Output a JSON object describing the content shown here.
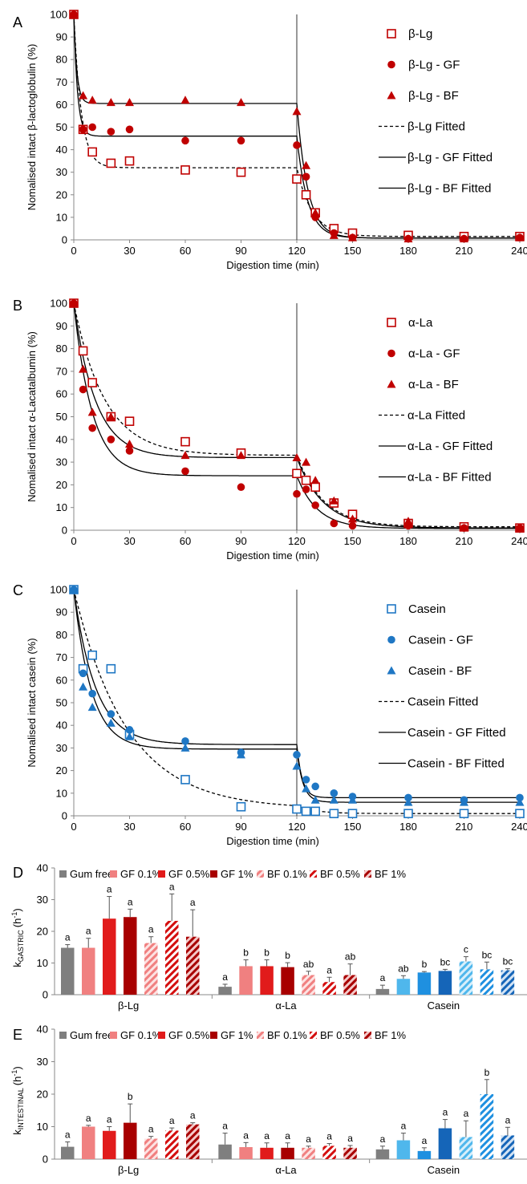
{
  "colors": {
    "red": "#c00000",
    "blue": "#1f77c4",
    "gray": "#7f7f7f",
    "axis": "#888888",
    "gf01": "#f08080",
    "gf05": "#e11b1b",
    "gf1": "#a80000",
    "bf01": "#f08080",
    "bf05": "#e11b1b",
    "bf1": "#a80000",
    "b_gf01": "#4fb7ec",
    "b_gf05": "#1f90e0",
    "b_gf1": "#1565b8",
    "b_bf01": "#4fb7ec",
    "b_bf05": "#1f90e0",
    "b_bf1": "#1565b8"
  },
  "chart_data": [
    {
      "panel": "A",
      "type": "scatter",
      "xlabel": "Digestion time (min)",
      "ylabel": "Nomalised intact β-lactoglobulin (%)",
      "xlim": [
        0,
        240
      ],
      "ylim": [
        0,
        100
      ],
      "xticks": [
        0,
        30,
        60,
        90,
        120,
        150,
        180,
        210,
        240
      ],
      "yticks": [
        0,
        10,
        20,
        30,
        40,
        50,
        60,
        70,
        80,
        90,
        100
      ],
      "vline_x": 120,
      "legend_position": "right",
      "series": [
        {
          "name": "β-Lg",
          "marker": "square-open",
          "x": [
            0,
            5,
            10,
            20,
            30,
            60,
            90,
            120,
            125,
            130,
            140,
            150,
            180,
            210,
            240
          ],
          "y": [
            100,
            49,
            39,
            34,
            35,
            31,
            30,
            27,
            20,
            12,
            5,
            3,
            2,
            1.5,
            1.5
          ]
        },
        {
          "name": "β-Lg - GF",
          "marker": "circle",
          "x": [
            0,
            5,
            10,
            20,
            30,
            60,
            90,
            120,
            125,
            130,
            140,
            150,
            180,
            210,
            240
          ],
          "y": [
            100,
            49,
            50,
            48,
            49,
            44,
            44,
            42,
            28,
            10,
            3,
            1,
            0.5,
            0.5,
            1
          ]
        },
        {
          "name": "β-Lg - BF",
          "marker": "triangle",
          "x": [
            0,
            5,
            10,
            20,
            30,
            60,
            90,
            120,
            125,
            130,
            140,
            150,
            180,
            210,
            240
          ],
          "y": [
            100,
            64,
            62,
            61,
            61,
            62,
            61,
            57,
            33,
            12,
            2,
            1,
            0.5,
            0.5,
            1
          ]
        }
      ],
      "fits": [
        {
          "name": "β-Lg Fitted",
          "dash": true,
          "p1": 32,
          "k1": 0.25,
          "p2": 1.5,
          "k2": 0.12
        },
        {
          "name": "β-Lg - GF Fitted",
          "dash": false,
          "p1": 46,
          "k1": 0.5,
          "p2": 0.8,
          "k2": 0.17
        },
        {
          "name": "β-Lg - BF Fitted",
          "dash": false,
          "p1": 60.5,
          "k1": 0.6,
          "p2": 0.8,
          "k2": 0.17
        }
      ]
    },
    {
      "panel": "B",
      "type": "scatter",
      "xlabel": "Digestion time (min)",
      "ylabel": "Nomalised intact α-Lacatalbumin (%)",
      "xlim": [
        0,
        240
      ],
      "ylim": [
        0,
        100
      ],
      "xticks": [
        0,
        30,
        60,
        90,
        120,
        150,
        180,
        210,
        240
      ],
      "yticks": [
        0,
        10,
        20,
        30,
        40,
        50,
        60,
        70,
        80,
        90,
        100
      ],
      "vline_x": 120,
      "legend_position": "right",
      "series": [
        {
          "name": "α-La",
          "marker": "square-open",
          "x": [
            0,
            5,
            10,
            20,
            30,
            60,
            90,
            120,
            125,
            130,
            140,
            150,
            180,
            210,
            240
          ],
          "y": [
            100,
            79,
            65,
            50,
            48,
            39,
            34,
            25,
            22,
            19,
            12,
            7,
            3,
            1.5,
            1
          ]
        },
        {
          "name": "α-La - GF",
          "marker": "circle",
          "x": [
            0,
            5,
            10,
            20,
            30,
            60,
            90,
            120,
            125,
            130,
            140,
            150,
            180,
            210,
            240
          ],
          "y": [
            100,
            62,
            45,
            40,
            35,
            26,
            19,
            16,
            18,
            11,
            3,
            2,
            2,
            1,
            1
          ]
        },
        {
          "name": "α-La - BF",
          "marker": "triangle",
          "x": [
            0,
            5,
            10,
            20,
            30,
            60,
            90,
            120,
            125,
            130,
            140,
            150,
            180,
            210,
            240
          ],
          "y": [
            100,
            71,
            52,
            50,
            38,
            33,
            33,
            32,
            30,
            22,
            13,
            5,
            4,
            1,
            1
          ]
        }
      ],
      "fits": [
        {
          "name": "α-La Fitted",
          "dash": true,
          "p1": 33,
          "k1": 0.06,
          "p2": 1.5,
          "k2": 0.07
        },
        {
          "name": "α-La - GF Fitted",
          "dash": false,
          "p1": 24,
          "k1": 0.1,
          "p2": 0.8,
          "k2": 0.09
        },
        {
          "name": "α-La - BF Fitted",
          "dash": false,
          "p1": 32,
          "k1": 0.085,
          "p2": 1,
          "k2": 0.07
        }
      ]
    },
    {
      "panel": "C",
      "type": "scatter",
      "xlabel": "Digestion time (min)",
      "ylabel": "Nomalised intact casein (%)",
      "xlim": [
        0,
        240
      ],
      "ylim": [
        0,
        100
      ],
      "xticks": [
        0,
        30,
        60,
        90,
        120,
        150,
        180,
        210,
        240
      ],
      "yticks": [
        0,
        10,
        20,
        30,
        40,
        50,
        60,
        70,
        80,
        90,
        100
      ],
      "vline_x": 120,
      "legend_position": "right",
      "series": [
        {
          "name": "Casein",
          "marker": "square-open",
          "x": [
            0,
            5,
            10,
            20,
            30,
            60,
            90,
            120,
            125,
            130,
            140,
            150,
            180,
            210,
            240
          ],
          "y": [
            100,
            65,
            71,
            65,
            36,
            16,
            4,
            3,
            2,
            2,
            1,
            1,
            1,
            1,
            1
          ]
        },
        {
          "name": "Casein - GF",
          "marker": "circle",
          "x": [
            0,
            5,
            10,
            20,
            30,
            60,
            90,
            120,
            125,
            130,
            140,
            150,
            180,
            210,
            240
          ],
          "y": [
            100,
            63,
            54,
            45,
            38,
            33,
            28,
            27,
            16,
            13,
            10,
            8.5,
            8,
            7,
            8
          ]
        },
        {
          "name": "Casein - BF",
          "marker": "triangle",
          "x": [
            0,
            5,
            10,
            20,
            30,
            60,
            90,
            120,
            125,
            130,
            140,
            150,
            180,
            210,
            240
          ],
          "y": [
            100,
            57,
            48,
            41,
            35,
            30,
            27,
            22,
            12,
            7,
            7,
            7,
            6,
            6,
            6
          ]
        }
      ],
      "fits": [
        {
          "name": "Casein Fitted",
          "dash": true,
          "p1": 3,
          "k1": 0.035,
          "p2": 1,
          "k2": 0.1
        },
        {
          "name": "Casein - GF Fitted",
          "dash": false,
          "p1": 31.5,
          "k1": 0.085,
          "p2": 8,
          "k2": 0.35
        },
        {
          "name": "Casein - BF Fitted",
          "dash": false,
          "p1": 29.5,
          "k1": 0.105,
          "p2": 6,
          "k2": 0.3
        }
      ]
    },
    {
      "panel": "D",
      "type": "bar",
      "ylabel": "kGASTRIC (h⁻¹)",
      "ylabel_main": "k",
      "ylabel_sub": "GASTRIC",
      "ylabel_unit": "(h",
      "ylabel_sup": "-1",
      "ylabel_close": ")",
      "ylim": [
        0,
        40
      ],
      "yticks": [
        0,
        10,
        20,
        30,
        40
      ],
      "legend_position": "top",
      "categories": [
        "β-Lg",
        "α-La",
        "Casein"
      ],
      "series": [
        {
          "name": "Gum free",
          "values": [
            14.8,
            2.5,
            1.8
          ],
          "errors": [
            1,
            0.8,
            1.2
          ],
          "letters": [
            "a",
            "a",
            "a"
          ]
        },
        {
          "name": "GF 0.1%",
          "values": [
            14.8,
            9,
            5
          ],
          "errors": [
            3,
            2,
            1
          ],
          "letters": [
            "a",
            "b",
            "ab"
          ]
        },
        {
          "name": "GF 0.5%",
          "values": [
            24,
            9,
            7
          ],
          "errors": [
            7,
            2,
            0.3
          ],
          "letters": [
            "a",
            "b",
            "b"
          ]
        },
        {
          "name": "GF 1%",
          "values": [
            24.5,
            8.7,
            7.5
          ],
          "errors": [
            2.5,
            1.4,
            0.5
          ],
          "letters": [
            "a",
            "b",
            "bc"
          ]
        },
        {
          "name": "BF 0.1%",
          "values": [
            16.3,
            6.2,
            10.5
          ],
          "errors": [
            2,
            1.2,
            1.5
          ],
          "letters": [
            "a",
            "ab",
            "c"
          ]
        },
        {
          "name": "BF 0.5%",
          "values": [
            23.3,
            4,
            8
          ],
          "errors": [
            8.5,
            1.5,
            2.3
          ],
          "letters": [
            "a",
            "a",
            "bc"
          ]
        },
        {
          "name": "BF 1%",
          "values": [
            18.3,
            6.2,
            7.7
          ],
          "errors": [
            8.5,
            3.5,
            0.5
          ],
          "letters": [
            "a",
            "ab",
            "bc"
          ]
        }
      ]
    },
    {
      "panel": "E",
      "type": "bar",
      "ylabel": "kINTESTINAL (h⁻¹)",
      "ylabel_main": "k",
      "ylabel_sub": "INTESTINAL",
      "ylabel_unit": "(h",
      "ylabel_sup": "-1",
      "ylabel_close": ")",
      "ylim": [
        0,
        40
      ],
      "yticks": [
        0,
        10,
        20,
        30,
        40
      ],
      "legend_position": "top",
      "categories": [
        "β-Lg",
        "α-La",
        "Casein"
      ],
      "series": [
        {
          "name": "Gum free",
          "values": [
            3.8,
            4.5,
            3
          ],
          "errors": [
            1.5,
            3.5,
            1
          ],
          "letters": [
            "a",
            "a",
            "a"
          ]
        },
        {
          "name": "GF 0.1%",
          "values": [
            10,
            3.7,
            5.8
          ],
          "errors": [
            0.4,
            1.4,
            2.2
          ],
          "letters": [
            "a",
            "a",
            "a"
          ]
        },
        {
          "name": "GF 0.5%",
          "values": [
            8.7,
            3.5,
            2.5
          ],
          "errors": [
            1.3,
            1.5,
            1
          ],
          "letters": [
            "a",
            "a",
            "a"
          ]
        },
        {
          "name": "GF 1%",
          "values": [
            11.2,
            3.5,
            9.5
          ],
          "errors": [
            5.8,
            1.5,
            2.7
          ],
          "letters": [
            "b",
            "a",
            "a"
          ]
        },
        {
          "name": "BF 0.1%",
          "values": [
            6.3,
            3.5,
            6.8
          ],
          "errors": [
            0.7,
            0.5,
            5
          ],
          "letters": [
            "a",
            "a",
            "a"
          ]
        },
        {
          "name": "BF 0.5%",
          "values": [
            8.8,
            4.1,
            20
          ],
          "errors": [
            0.8,
            0.7,
            4.5
          ],
          "letters": [
            "a",
            "a",
            "b"
          ]
        },
        {
          "name": "BF 1%",
          "values": [
            10.7,
            3.5,
            7.3
          ],
          "errors": [
            0.5,
            0.7,
            2.5
          ],
          "letters": [
            "a",
            "a",
            "a"
          ]
        }
      ]
    }
  ],
  "panel_labels": [
    "A",
    "B",
    "C",
    "D",
    "E"
  ]
}
